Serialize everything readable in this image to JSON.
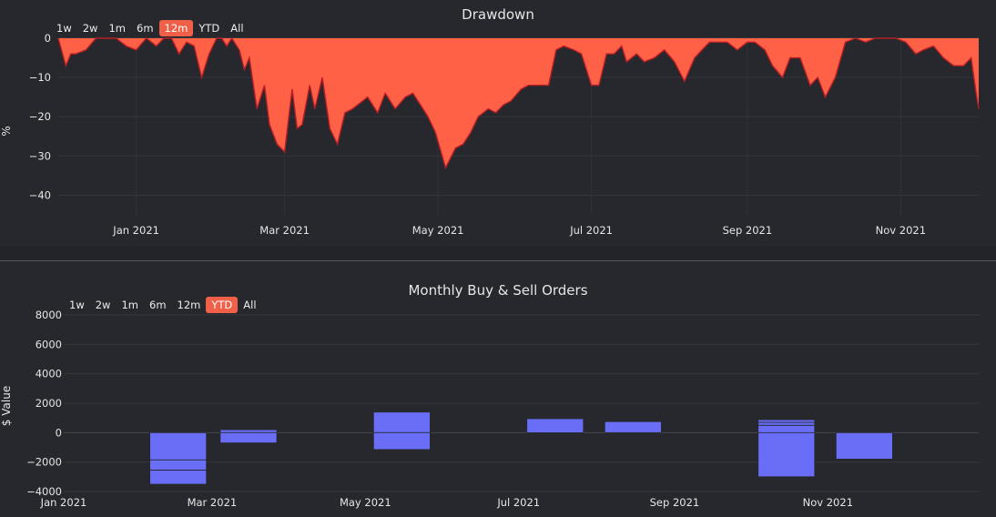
{
  "colors": {
    "drawdown_fill": "#fe6145",
    "drawdown_line": "#b71e25",
    "bar_fill": "#6a6ef7",
    "active_button": "#f06048"
  },
  "chart_data": [
    {
      "type": "area",
      "title": "Drawdown",
      "ylabel": "%",
      "xlabel": "",
      "ylim": [
        -45,
        0
      ],
      "y_ticks": [
        "0",
        "−10",
        "−20",
        "−30",
        "−40"
      ],
      "x_ticks": [
        "Jan 2021",
        "Mar 2021",
        "May 2021",
        "Jul 2021",
        "Sep 2021",
        "Nov 2021"
      ],
      "range_buttons": [
        "1w",
        "2w",
        "1m",
        "6m",
        "12m",
        "YTD",
        "All"
      ],
      "active_button": "12m",
      "series": [
        {
          "x": [
            "2020-12-01",
            "2020-12-04",
            "2020-12-06",
            "2020-12-08",
            "2020-12-12",
            "2020-12-16",
            "2020-12-20",
            "2020-12-24",
            "2020-12-28",
            "2021-01-01",
            "2021-01-05",
            "2021-01-09",
            "2021-01-12",
            "2021-01-15",
            "2021-01-18",
            "2021-01-21",
            "2021-01-24",
            "2021-01-27",
            "2021-01-30",
            "2021-02-02",
            "2021-02-04",
            "2021-02-06",
            "2021-02-08",
            "2021-02-11",
            "2021-02-13",
            "2021-02-15",
            "2021-02-18",
            "2021-02-21",
            "2021-02-23",
            "2021-02-26",
            "2021-03-01",
            "2021-03-04",
            "2021-03-06",
            "2021-03-08",
            "2021-03-11",
            "2021-03-13",
            "2021-03-16",
            "2021-03-19",
            "2021-03-22",
            "2021-03-25",
            "2021-03-28",
            "2021-04-01",
            "2021-04-03",
            "2021-04-07",
            "2021-04-10",
            "2021-04-14",
            "2021-04-18",
            "2021-04-21",
            "2021-04-24",
            "2021-04-27",
            "2021-04-30",
            "2021-05-04",
            "2021-05-08",
            "2021-05-11",
            "2021-05-14",
            "2021-05-17",
            "2021-05-19",
            "2021-05-21",
            "2021-05-24",
            "2021-05-27",
            "2021-05-30",
            "2021-06-03",
            "2021-06-06",
            "2021-06-10",
            "2021-06-14",
            "2021-06-17",
            "2021-06-20",
            "2021-06-24",
            "2021-06-27",
            "2021-07-01",
            "2021-07-04",
            "2021-07-07",
            "2021-07-10",
            "2021-07-13",
            "2021-07-15",
            "2021-07-19",
            "2021-07-22",
            "2021-07-26",
            "2021-07-30",
            "2021-08-03",
            "2021-08-07",
            "2021-08-11",
            "2021-08-14",
            "2021-08-17",
            "2021-08-20",
            "2021-08-24",
            "2021-08-28",
            "2021-09-01",
            "2021-09-04",
            "2021-09-08",
            "2021-09-11",
            "2021-09-15",
            "2021-09-18",
            "2021-09-22",
            "2021-09-26",
            "2021-09-29",
            "2021-10-02",
            "2021-10-06",
            "2021-10-10",
            "2021-10-14",
            "2021-10-18",
            "2021-10-22",
            "2021-10-26",
            "2021-10-30",
            "2021-11-03",
            "2021-11-07",
            "2021-11-10",
            "2021-11-14",
            "2021-11-18",
            "2021-11-22",
            "2021-11-26",
            "2021-11-29",
            "2021-12-01",
            "2021-12-02"
          ],
          "y": [
            0,
            -7,
            -4,
            -4,
            -3,
            0,
            0,
            0,
            -2,
            -3,
            0,
            -2,
            0,
            0,
            -4,
            -1,
            -2,
            -10,
            -4,
            0,
            0,
            -2,
            0,
            -3,
            -8,
            -5,
            -18,
            -12,
            -22,
            -27,
            -29,
            -13,
            -23,
            -22,
            -12,
            -18,
            -10,
            -23,
            -27,
            -19,
            -18,
            -16,
            -15,
            -19,
            -14,
            -18,
            -15,
            -14,
            -17,
            -20,
            -24,
            -33,
            -28,
            -27,
            -24,
            -20,
            -19,
            -18,
            -19,
            -17,
            -16,
            -13,
            -12,
            -12,
            -12,
            -3,
            -2,
            -3,
            -4,
            -12,
            -12,
            -4,
            -4,
            -2,
            -6,
            -4,
            -6,
            -5,
            -3,
            -6,
            -11,
            -5,
            -3,
            -1,
            -1,
            -1,
            -3,
            -1,
            -1,
            -3,
            -7,
            -10,
            -5,
            -5,
            -12,
            -10,
            -15,
            -10,
            -1,
            0,
            -1,
            0,
            0,
            0,
            -1,
            -4,
            -3,
            -2,
            -5,
            -7,
            -7,
            -5,
            -14,
            -18
          ]
        }
      ]
    },
    {
      "type": "bar",
      "title": "Monthly Buy & Sell Orders",
      "ylabel": "$ Value",
      "xlabel": "",
      "ylim": [
        -4000,
        8000
      ],
      "y_ticks": [
        "8000",
        "6000",
        "4000",
        "2000",
        "0",
        "−2000",
        "−4000"
      ],
      "x_ticks": [
        "Jan 2021",
        "Mar 2021",
        "May 2021",
        "Jul 2021",
        "Sep 2021",
        "Nov 2021"
      ],
      "range_buttons": [
        "1w",
        "2w",
        "1m",
        "6m",
        "12m",
        "YTD",
        "All"
      ],
      "active_button": "YTD",
      "bars": [
        {
          "month": "2021-02",
          "segments": [
            [
              -1850,
              -2550
            ],
            [
              -2550,
              -3500
            ],
            [
              0,
              -1850
            ]
          ]
        },
        {
          "month": "2021-03",
          "segments": [
            [
              0,
              200
            ],
            [
              0,
              -700
            ]
          ]
        },
        {
          "month": "2021-05",
          "segments": [
            [
              0,
              1400
            ],
            [
              0,
              -1150
            ]
          ]
        },
        {
          "month": "2021-07",
          "segments": [
            [
              0,
              950
            ]
          ]
        },
        {
          "month": "2021-08",
          "segments": [
            [
              0,
              750
            ]
          ]
        },
        {
          "month": "2021-10",
          "segments": [
            [
              0,
              500
            ],
            [
              500,
              700
            ],
            [
              700,
              880
            ],
            [
              0,
              -3000
            ]
          ]
        },
        {
          "month": "2021-11",
          "segments": [
            [
              0,
              -1800
            ]
          ]
        }
      ]
    }
  ]
}
